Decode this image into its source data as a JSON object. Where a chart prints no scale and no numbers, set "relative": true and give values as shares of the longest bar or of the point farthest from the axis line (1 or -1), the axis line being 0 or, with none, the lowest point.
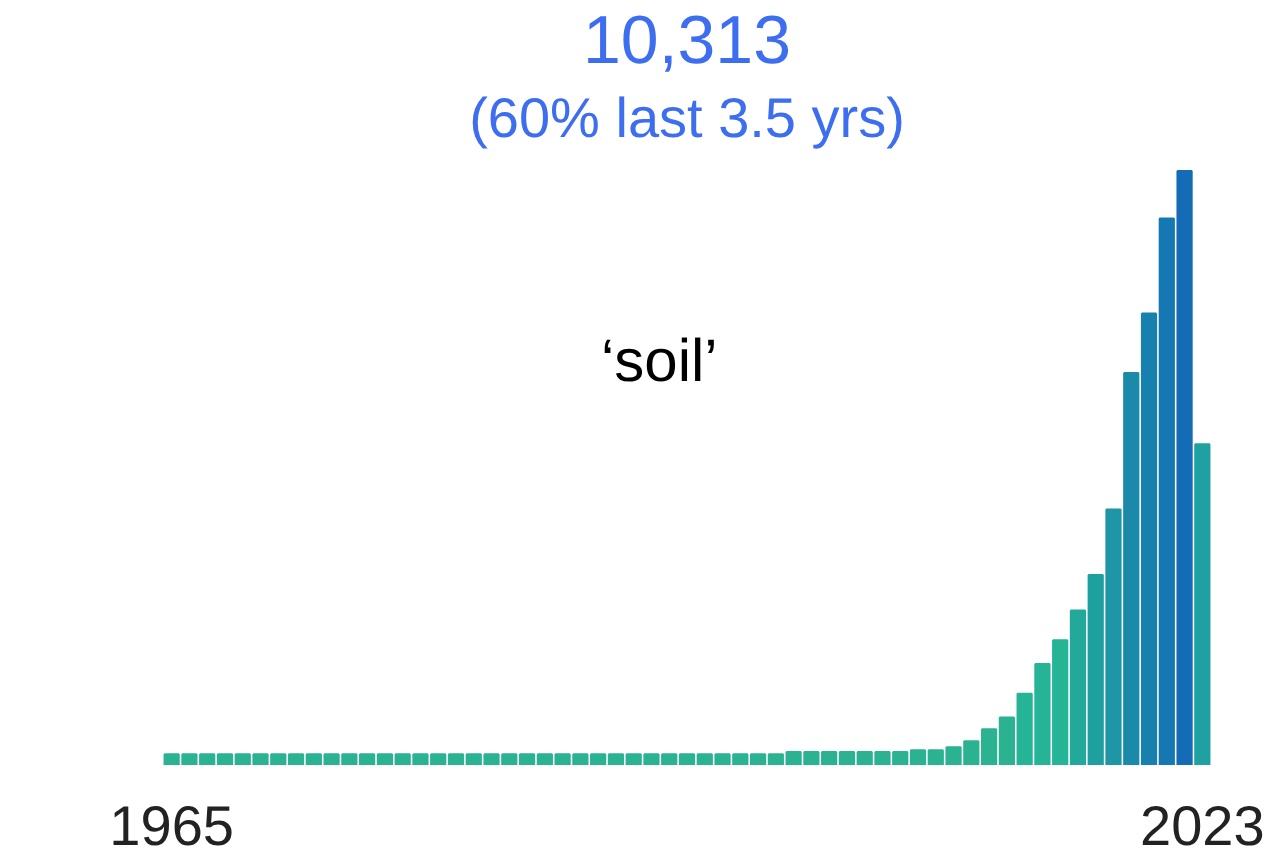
{
  "chart_data": {
    "type": "bar",
    "title": "10,313",
    "subtitle": "(60% last 3.5 yrs)",
    "annotations": [
      "‘soil’"
    ],
    "relative": true,
    "grid": false,
    "categories": [
      "1965",
      null,
      null,
      null,
      null,
      null,
      null,
      null,
      null,
      null,
      null,
      null,
      null,
      null,
      null,
      null,
      null,
      null,
      null,
      null,
      null,
      null,
      null,
      null,
      null,
      null,
      null,
      null,
      null,
      null,
      null,
      null,
      null,
      null,
      null,
      null,
      null,
      null,
      null,
      null,
      null,
      null,
      null,
      null,
      null,
      null,
      null,
      null,
      null,
      null,
      null,
      null,
      null,
      null,
      null,
      null,
      null,
      null,
      "2023"
    ],
    "values": [
      0.018,
      0.018,
      0.018,
      0.018,
      0.018,
      0.018,
      0.018,
      0.018,
      0.018,
      0.018,
      0.018,
      0.018,
      0.018,
      0.018,
      0.018,
      0.018,
      0.018,
      0.018,
      0.018,
      0.018,
      0.018,
      0.018,
      0.018,
      0.018,
      0.018,
      0.018,
      0.018,
      0.018,
      0.018,
      0.018,
      0.018,
      0.018,
      0.018,
      0.018,
      0.018,
      0.022,
      0.022,
      0.022,
      0.022,
      0.022,
      0.022,
      0.022,
      0.025,
      0.025,
      0.03,
      0.04,
      0.06,
      0.08,
      0.12,
      0.17,
      0.21,
      0.26,
      0.32,
      0.43,
      0.66,
      0.76,
      0.92,
      1.0,
      0.54
    ],
    "colors": [
      "#2bb391",
      "#2bb391",
      "#2bb391",
      "#2bb391",
      "#2bb391",
      "#2bb391",
      "#2bb391",
      "#2bb391",
      "#2bb391",
      "#2bb391",
      "#2bb391",
      "#2bb391",
      "#2bb391",
      "#2bb391",
      "#2bb391",
      "#2bb391",
      "#2bb391",
      "#2bb391",
      "#2bb391",
      "#2bb391",
      "#2bb391",
      "#2bb391",
      "#2bb391",
      "#2bb391",
      "#2bb391",
      "#2bb391",
      "#2bb391",
      "#2bb391",
      "#2bb391",
      "#2bb391",
      "#2bb391",
      "#2bb391",
      "#2bb391",
      "#2bb391",
      "#2bb391",
      "#2bb391",
      "#2bb391",
      "#2bb391",
      "#2bb391",
      "#2bb391",
      "#2bb391",
      "#2bb391",
      "#2bb391",
      "#2bb391",
      "#2bb391",
      "#2bb391",
      "#2bb391",
      "#2bb391",
      "#25b496",
      "#25b496",
      "#25b496",
      "#22a99a",
      "#1fa0a0",
      "#1e96a5",
      "#1b8aaa",
      "#1880af",
      "#1678b3",
      "#136cb5",
      "#1fa1a2"
    ]
  }
}
